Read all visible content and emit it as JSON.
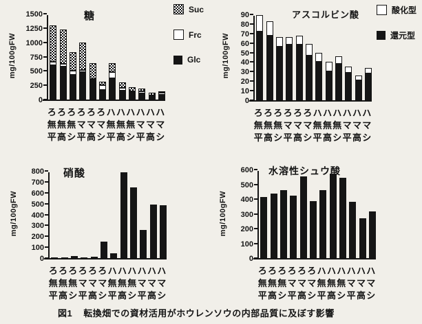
{
  "figure": {
    "number": "図1",
    "caption": "転換畑での資材活用がホウレンソウの内部品質に及ぼす影響"
  },
  "chart_data": [
    {
      "id": "sugar",
      "type": "bar",
      "stacked": true,
      "title": "糖",
      "ylabel": "mg/100gFW",
      "ylim": [
        0,
        1500
      ],
      "ytick_step": 250,
      "grid": false,
      "legend_position": "right-top",
      "categories": [
        "ろ無平",
        "ろ無高",
        "ろ無シ",
        "ろマ平",
        "ろマ高",
        "ろマシ",
        "ハ無平",
        "ハ無高",
        "ハ無シ",
        "ハマ平",
        "ハマ高",
        "ハマシ"
      ],
      "series": [
        {
          "name": "Glc",
          "swatch": "black",
          "values": [
            600,
            575,
            430,
            475,
            340,
            170,
            370,
            160,
            115,
            110,
            50,
            85
          ]
        },
        {
          "name": "Frc",
          "swatch": "white",
          "values": [
            60,
            45,
            70,
            45,
            20,
            80,
            110,
            45,
            30,
            30,
            25,
            35
          ]
        },
        {
          "name": "Suc",
          "swatch": "checker",
          "values": [
            630,
            600,
            330,
            470,
            270,
            60,
            160,
            100,
            65,
            55,
            40,
            10
          ]
        }
      ],
      "legend": [
        {
          "label": "Suc",
          "swatch": "checker"
        },
        {
          "label": "Frc",
          "swatch": "white"
        },
        {
          "label": "Glc",
          "swatch": "black"
        }
      ]
    },
    {
      "id": "vitc",
      "type": "bar",
      "stacked": true,
      "title": "アスコルビン酸",
      "ylabel": "mg/100gFW",
      "ylim": [
        0,
        90
      ],
      "ytick_step": 10,
      "grid": false,
      "legend_position": "right-top",
      "categories": [
        "ろ無平",
        "ろ無高",
        "ろ無シ",
        "ろマ平",
        "ろマ高",
        "ろマシ",
        "ハ無平",
        "ハ無高",
        "ハ無シ",
        "ハマ平",
        "ハマ高",
        "ハマシ"
      ],
      "series": [
        {
          "name": "還元型",
          "swatch": "black",
          "values": [
            72,
            68,
            56,
            58,
            58,
            47,
            40,
            30,
            38,
            29,
            21,
            28
          ]
        },
        {
          "name": "酸化型",
          "swatch": "white",
          "values": [
            17,
            15,
            10,
            8,
            10,
            12,
            10,
            10,
            8,
            6,
            5,
            6
          ]
        }
      ],
      "legend": [
        {
          "label": "酸化型",
          "swatch": "white"
        },
        {
          "label": "還元型",
          "swatch": "black"
        }
      ]
    },
    {
      "id": "nitrate",
      "type": "bar",
      "stacked": false,
      "title": "硝酸",
      "ylabel": "mg/100gFW",
      "ylim": [
        0,
        800
      ],
      "ytick_step": 100,
      "grid": false,
      "categories": [
        "ろ無平",
        "ろ無高",
        "ろ無シ",
        "ろマ平",
        "ろマ高",
        "ろマシ",
        "ハ無平",
        "ハ無高",
        "ハ無シ",
        "ハマ平",
        "ハマ高",
        "ハマシ"
      ],
      "series": [
        {
          "name": "硝酸",
          "swatch": "black",
          "values": [
            5,
            5,
            20,
            5,
            15,
            150,
            45,
            790,
            650,
            260,
            490,
            485
          ]
        }
      ],
      "legend": []
    },
    {
      "id": "oxalate",
      "type": "bar",
      "stacked": false,
      "title": "水溶性シュウ酸",
      "ylabel": "mg/100gFW",
      "ylim": [
        0,
        600
      ],
      "ytick_step": 100,
      "grid": false,
      "categories": [
        "ろ無平",
        "ろ無高",
        "ろ無シ",
        "ろマ平",
        "ろマ高",
        "ろマシ",
        "ハ無平",
        "ハ無高",
        "ハ無シ",
        "ハマ平",
        "ハマ高",
        "ハマシ"
      ],
      "series": [
        {
          "name": "水溶性シュウ酸",
          "swatch": "black",
          "values": [
            415,
            435,
            460,
            425,
            555,
            385,
            460,
            570,
            545,
            380,
            270,
            315
          ]
        }
      ],
      "legend": []
    }
  ],
  "colors": {
    "ink": "#141414",
    "paper": "#f1efe9",
    "bar_fill": "#151515"
  }
}
